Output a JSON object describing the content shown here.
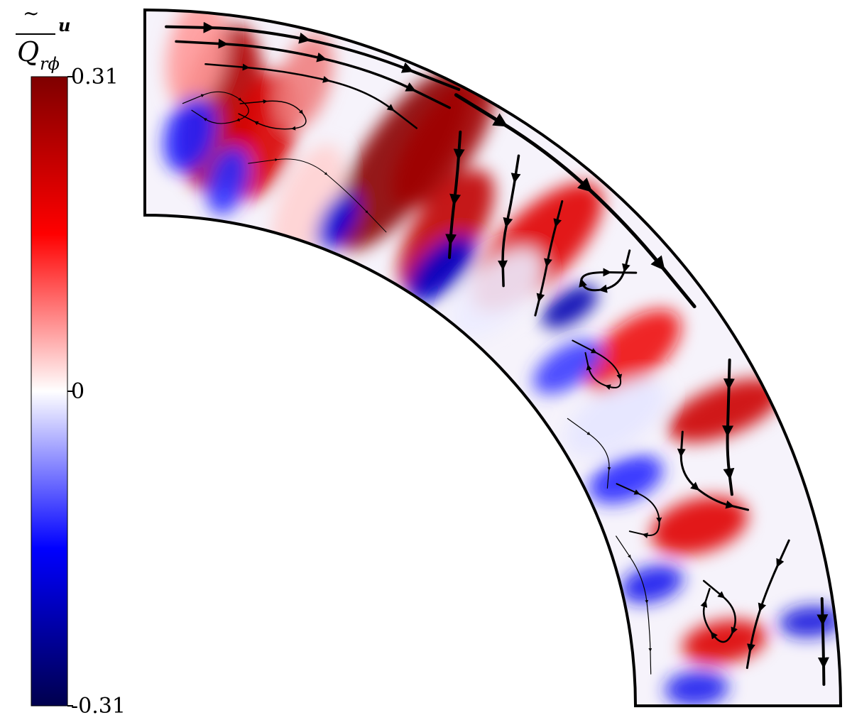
{
  "chart_data": {
    "type": "heatmap",
    "subtype": "meridional-section-contour-with-streamlines",
    "colorbar": {
      "label_symbol": "Q",
      "label_subscript": "rϕ",
      "label_superscript": "u",
      "label_overmarks": "~ and overbar",
      "ticks": [
        {
          "value": 0.31,
          "label": "0.31"
        },
        {
          "value": 0,
          "label": "0"
        },
        {
          "value": -0.31,
          "label": "-0.31"
        }
      ],
      "range": [
        -0.31,
        0.31
      ],
      "colormap": "seismic",
      "colormap_stops": [
        "#00004d",
        "#0000ff",
        "#ffffff",
        "#ff0000",
        "#7f0000"
      ]
    },
    "domain": {
      "shape": "quarter-annulus sector",
      "colatitude_range_deg": [
        0,
        90
      ],
      "radius_ratio": 0.72
    },
    "features": {
      "streamlines": true,
      "streamline_width_varies_with_speed": true,
      "grid": false,
      "axes": false
    }
  }
}
